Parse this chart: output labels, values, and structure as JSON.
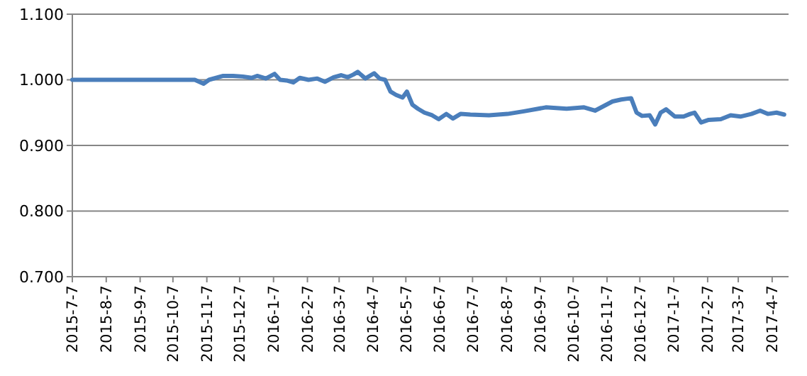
{
  "chart_data": {
    "type": "line",
    "grid": "y",
    "marker": "none",
    "line_style": "solid",
    "xlim": [
      "2015-07-07",
      "2017-04-22"
    ],
    "xticks": [
      {
        "value": "2015-07-07",
        "label": "2015-7-7"
      },
      {
        "value": "2015-08-07",
        "label": "2015-8-7"
      },
      {
        "value": "2015-09-07",
        "label": "2015-9-7"
      },
      {
        "value": "2015-10-07",
        "label": "2015-10-7"
      },
      {
        "value": "2015-11-07",
        "label": "2015-11-7"
      },
      {
        "value": "2015-12-07",
        "label": "2015-12-7"
      },
      {
        "value": "2016-01-07",
        "label": "2016-1-7"
      },
      {
        "value": "2016-02-07",
        "label": "2016-2-7"
      },
      {
        "value": "2016-03-07",
        "label": "2016-3-7"
      },
      {
        "value": "2016-04-07",
        "label": "2016-4-7"
      },
      {
        "value": "2016-05-07",
        "label": "2016-5-7"
      },
      {
        "value": "2016-06-07",
        "label": "2016-6-7"
      },
      {
        "value": "2016-07-07",
        "label": "2016-7-7"
      },
      {
        "value": "2016-08-07",
        "label": "2016-8-7"
      },
      {
        "value": "2016-09-07",
        "label": "2016-9-7"
      },
      {
        "value": "2016-10-07",
        "label": "2016-10-7"
      },
      {
        "value": "2016-11-07",
        "label": "2016-11-7"
      },
      {
        "value": "2016-12-07",
        "label": "2016-12-7"
      },
      {
        "value": "2017-01-07",
        "label": "2017-1-7"
      },
      {
        "value": "2017-02-07",
        "label": "2017-2-7"
      },
      {
        "value": "2017-03-07",
        "label": "2017-3-7"
      },
      {
        "value": "2017-04-07",
        "label": "2017-4-7"
      }
    ],
    "ylim": [
      0.7,
      1.1
    ],
    "yticks": [
      {
        "value": 0.7,
        "label": "0.700"
      },
      {
        "value": 0.8,
        "label": "0.800"
      },
      {
        "value": 0.9,
        "label": "0.900"
      },
      {
        "value": 1.0,
        "label": "1.000"
      },
      {
        "value": 1.1,
        "label": "1.100"
      }
    ],
    "x": [
      "2015-07-07",
      "2015-10-27",
      "2015-11-04",
      "2015-11-09",
      "2015-11-22",
      "2015-12-01",
      "2015-12-10",
      "2015-12-18",
      "2015-12-23",
      "2015-12-31",
      "2016-01-08",
      "2016-01-13",
      "2016-01-19",
      "2016-01-25",
      "2016-01-31",
      "2016-02-08",
      "2016-02-16",
      "2016-02-23",
      "2016-03-02",
      "2016-03-09",
      "2016-03-15",
      "2016-03-20",
      "2016-03-24",
      "2016-03-31",
      "2016-04-08",
      "2016-04-13",
      "2016-04-18",
      "2016-04-23",
      "2016-04-28",
      "2016-05-04",
      "2016-05-08",
      "2016-05-13",
      "2016-05-18",
      "2016-05-24",
      "2016-05-31",
      "2016-06-06",
      "2016-06-13",
      "2016-06-19",
      "2016-06-26",
      "2016-07-05",
      "2016-07-22",
      "2016-08-08",
      "2016-08-23",
      "2016-09-12",
      "2016-10-01",
      "2016-10-17",
      "2016-10-27",
      "2016-11-04",
      "2016-11-12",
      "2016-11-20",
      "2016-11-29",
      "2016-12-04",
      "2016-12-09",
      "2016-12-16",
      "2016-12-21",
      "2016-12-26",
      "2016-12-31",
      "2017-01-08",
      "2017-01-16",
      "2017-01-22",
      "2017-01-26",
      "2017-02-01",
      "2017-02-08",
      "2017-02-19",
      "2017-02-28",
      "2017-03-09",
      "2017-03-19",
      "2017-03-27",
      "2017-04-03",
      "2017-04-11",
      "2017-04-18"
    ],
    "series": [
      {
        "color": "#4a7ebb",
        "values": [
          1.0,
          1.0,
          0.994,
          1.0,
          1.006,
          1.006,
          1.005,
          1.003,
          1.006,
          1.002,
          1.009,
          1.0,
          0.999,
          0.996,
          1.003,
          1.0,
          1.002,
          0.997,
          1.004,
          1.007,
          1.004,
          1.008,
          1.012,
          1.002,
          1.01,
          1.002,
          1.0,
          0.982,
          0.977,
          0.973,
          0.982,
          0.962,
          0.956,
          0.95,
          0.946,
          0.94,
          0.948,
          0.941,
          0.948,
          0.947,
          0.946,
          0.948,
          0.952,
          0.958,
          0.956,
          0.958,
          0.953,
          0.96,
          0.967,
          0.97,
          0.972,
          0.95,
          0.945,
          0.946,
          0.932,
          0.95,
          0.955,
          0.944,
          0.944,
          0.948,
          0.95,
          0.935,
          0.939,
          0.94,
          0.946,
          0.944,
          0.948,
          0.953,
          0.948,
          0.95,
          0.947
        ]
      }
    ]
  }
}
